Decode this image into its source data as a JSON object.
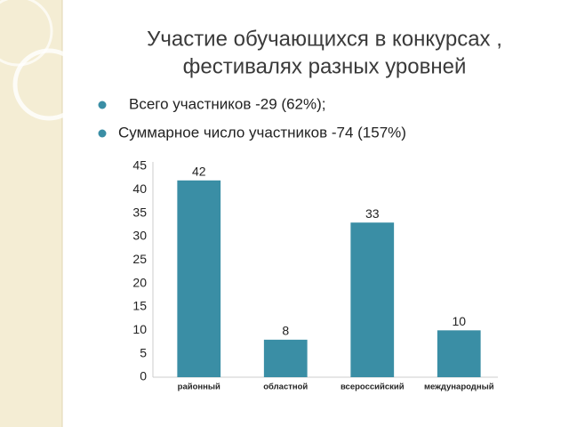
{
  "slide": {
    "title_lines": [
      "Участие обучающихся в конкурсах ,",
      "фестивалях разных уровней"
    ],
    "bullets": [
      "Всего участников -29 (62%);",
      "Суммарное число участников -74 (157%)"
    ]
  },
  "chart_data": {
    "type": "bar",
    "categories": [
      "районный",
      "областной",
      "всероссийский",
      "международный"
    ],
    "values": [
      42,
      8,
      33,
      10
    ],
    "color": "#3a8ea5",
    "ylim": [
      0,
      45
    ],
    "yticks": [
      0,
      5,
      10,
      15,
      20,
      25,
      30,
      35,
      40,
      45
    ],
    "grid": false
  }
}
